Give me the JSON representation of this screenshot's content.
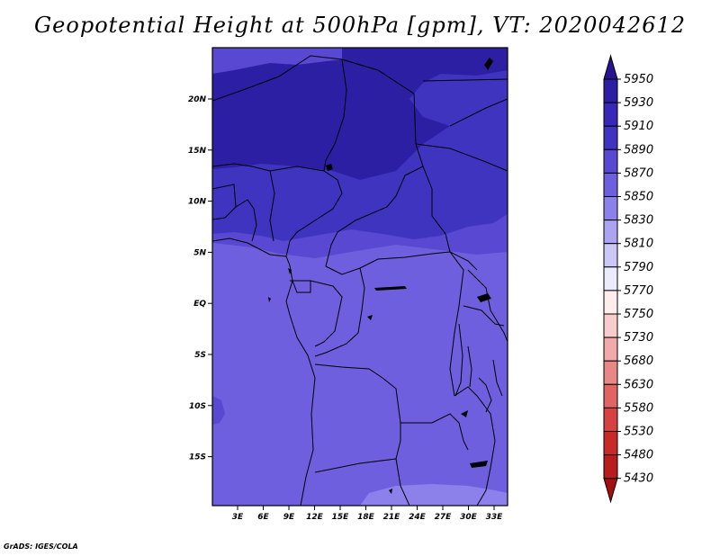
{
  "title": "Geopotential Height at 500hPa [gpm], VT: 2020042612",
  "credit": "GrADS: IGES/COLA",
  "map": {
    "lat_labels": [
      "20N",
      "15N",
      "10N",
      "5N",
      "EQ",
      "5S",
      "10S",
      "15S"
    ],
    "lon_labels": [
      "3E",
      "6E",
      "9E",
      "12E",
      "15E",
      "18E",
      "21E",
      "24E",
      "27E",
      "30E",
      "33E"
    ]
  },
  "colorbar": {
    "levels": [
      "5950",
      "5930",
      "5910",
      "5890",
      "5870",
      "5850",
      "5830",
      "5810",
      "5790",
      "5770",
      "5750",
      "5730",
      "5680",
      "5630",
      "5580",
      "5530",
      "5480",
      "5430"
    ],
    "colors": [
      "#281491",
      "#2d1fa3",
      "#3828b8",
      "#3f34c0",
      "#5848d2",
      "#6e5fde",
      "#8c80ea",
      "#aca4f1",
      "#cbc8f6",
      "#ecebfd",
      "#ffecec",
      "#f8cccc",
      "#f1a9a9",
      "#e98787",
      "#e06464",
      "#d84141",
      "#c82a2a",
      "#b81c1c",
      "#a41010"
    ]
  }
}
